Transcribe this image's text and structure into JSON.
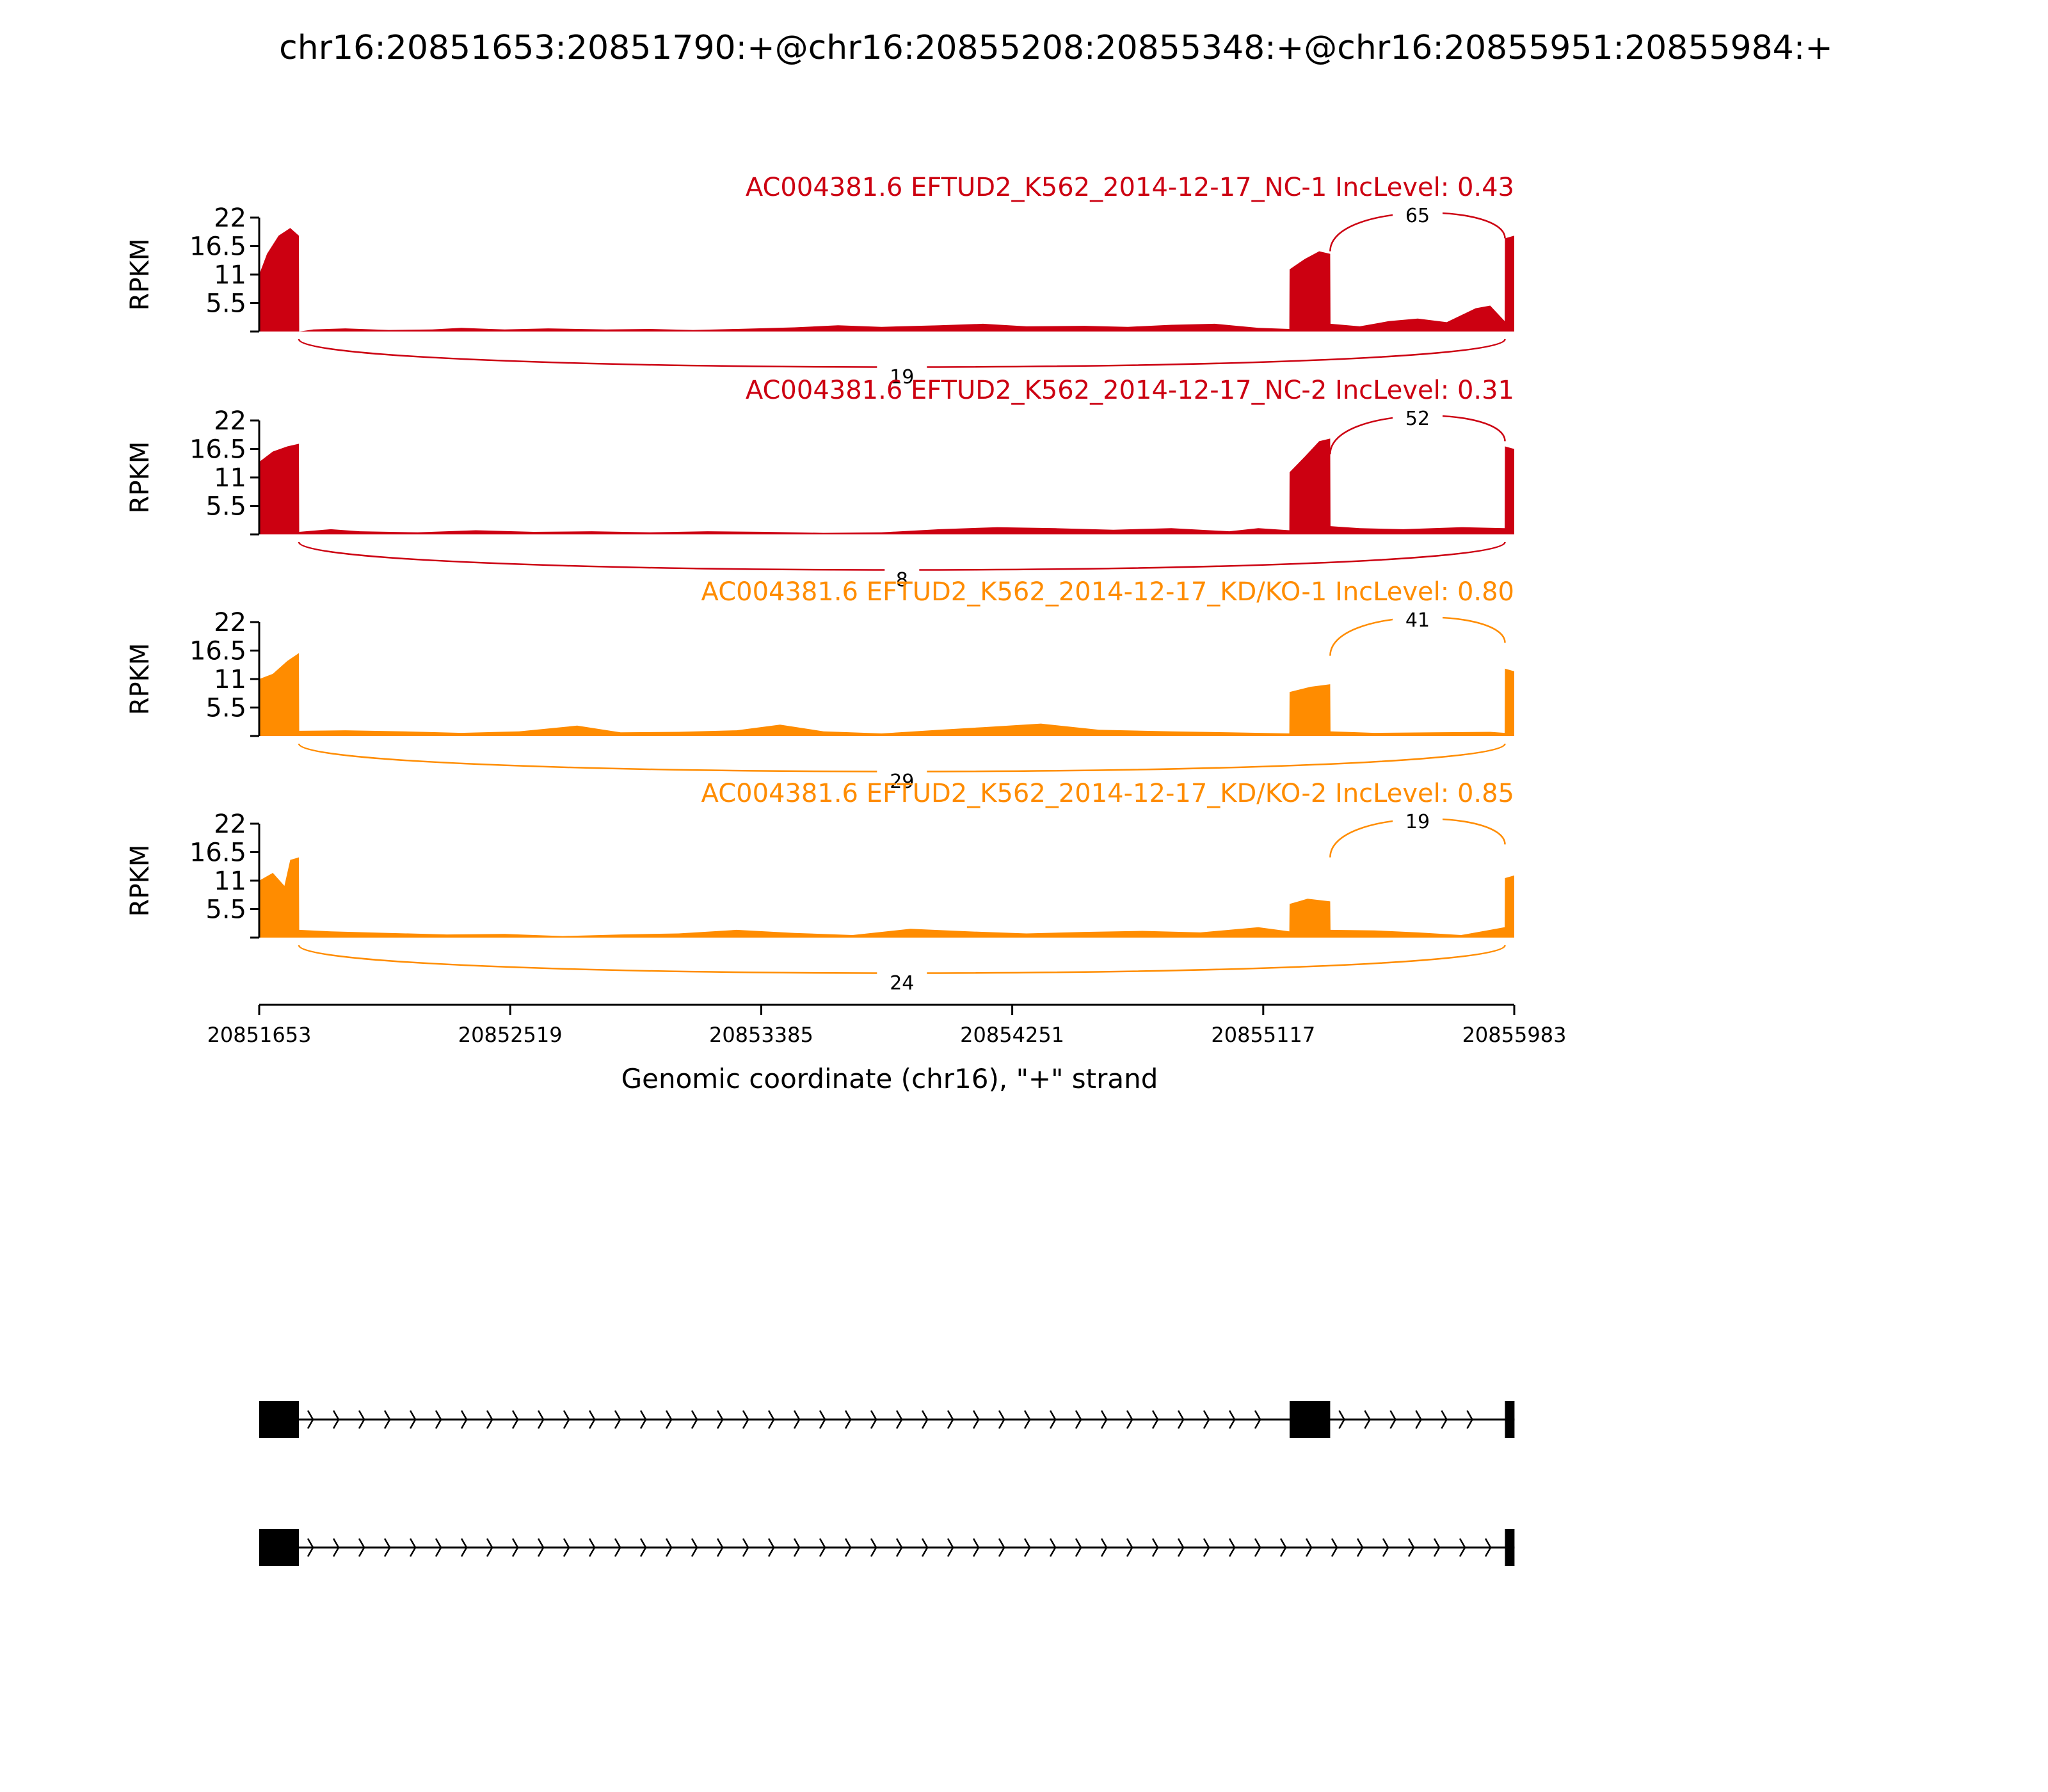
{
  "chart_data": {
    "type": "area",
    "title": "chr16:20851653:20851790:+@chr16:20855208:20855348:+@chr16:20855951:20855984:+",
    "xlabel": "Genomic coordinate (chr16), \"+\" strand",
    "ylabel": "RPKM",
    "xlim": [
      20851653,
      20855983
    ],
    "x_ticks": [
      20851653,
      20852519,
      20853385,
      20854251,
      20855117,
      20855983
    ],
    "x_tick_labels": [
      "20851653",
      "20852519",
      "20853385",
      "20854251",
      "20855117",
      "20855983"
    ],
    "ylim": [
      0,
      22
    ],
    "y_ticks": [
      5.5,
      11,
      16.5,
      22
    ],
    "y_tick_labels": [
      "5.5",
      "11",
      "16.5",
      "22"
    ],
    "exons": [
      [
        20851653,
        20851790
      ],
      [
        20855208,
        20855348
      ],
      [
        20855951,
        20855984
      ]
    ],
    "tracks": [
      {
        "label": "AC004381.6 EFTUD2_K562_2014-12-17_NC-1 IncLevel: 0.43",
        "color": "#cc0011",
        "junctions": [
          {
            "from": 20855348,
            "to": 20855951,
            "count": "65",
            "side": "above"
          },
          {
            "from": 20851790,
            "to": 20855951,
            "count": "19",
            "side": "below"
          }
        ],
        "coverage": [
          [
            20851653,
            11
          ],
          [
            20851680,
            15
          ],
          [
            20851720,
            18.5
          ],
          [
            20851760,
            20
          ],
          [
            20851790,
            18.5
          ],
          [
            20851791,
            0
          ],
          [
            20851840,
            0.4
          ],
          [
            20851950,
            0.6
          ],
          [
            20852100,
            0.3
          ],
          [
            20852250,
            0.4
          ],
          [
            20852350,
            0.7
          ],
          [
            20852500,
            0.4
          ],
          [
            20852650,
            0.6
          ],
          [
            20852850,
            0.4
          ],
          [
            20853000,
            0.5
          ],
          [
            20853150,
            0.3
          ],
          [
            20853300,
            0.5
          ],
          [
            20853500,
            0.8
          ],
          [
            20853650,
            1.2
          ],
          [
            20853800,
            0.9
          ],
          [
            20854000,
            1.2
          ],
          [
            20854150,
            1.5
          ],
          [
            20854300,
            1.0
          ],
          [
            20854500,
            1.1
          ],
          [
            20854650,
            0.9
          ],
          [
            20854800,
            1.3
          ],
          [
            20854950,
            1.5
          ],
          [
            20855100,
            0.7
          ],
          [
            20855207,
            0.5
          ],
          [
            20855208,
            12
          ],
          [
            20855260,
            14
          ],
          [
            20855310,
            15.5
          ],
          [
            20855348,
            15
          ],
          [
            20855349,
            1.5
          ],
          [
            20855450,
            1.0
          ],
          [
            20855550,
            2.0
          ],
          [
            20855650,
            2.5
          ],
          [
            20855750,
            1.8
          ],
          [
            20855850,
            4.5
          ],
          [
            20855900,
            5.0
          ],
          [
            20855950,
            2.0
          ],
          [
            20855951,
            18
          ],
          [
            20855983,
            18.5
          ]
        ]
      },
      {
        "label": "AC004381.6 EFTUD2_K562_2014-12-17_NC-2 IncLevel: 0.31",
        "color": "#cc0011",
        "junctions": [
          {
            "from": 20855348,
            "to": 20855951,
            "count": "52",
            "side": "above"
          },
          {
            "from": 20851790,
            "to": 20855951,
            "count": "8",
            "side": "below"
          }
        ],
        "coverage": [
          [
            20851653,
            14
          ],
          [
            20851700,
            16
          ],
          [
            20851750,
            17
          ],
          [
            20851790,
            17.5
          ],
          [
            20851791,
            0.5
          ],
          [
            20851900,
            1.0
          ],
          [
            20852000,
            0.6
          ],
          [
            20852200,
            0.4
          ],
          [
            20852400,
            0.8
          ],
          [
            20852600,
            0.5
          ],
          [
            20852800,
            0.6
          ],
          [
            20853000,
            0.4
          ],
          [
            20853200,
            0.6
          ],
          [
            20853400,
            0.5
          ],
          [
            20853600,
            0.3
          ],
          [
            20853800,
            0.4
          ],
          [
            20854000,
            1.0
          ],
          [
            20854200,
            1.4
          ],
          [
            20854400,
            1.2
          ],
          [
            20854600,
            0.9
          ],
          [
            20854800,
            1.2
          ],
          [
            20855000,
            0.6
          ],
          [
            20855100,
            1.2
          ],
          [
            20855207,
            0.8
          ],
          [
            20855208,
            12
          ],
          [
            20855260,
            15
          ],
          [
            20855310,
            18
          ],
          [
            20855348,
            18.5
          ],
          [
            20855349,
            1.6
          ],
          [
            20855450,
            1.2
          ],
          [
            20855600,
            1.0
          ],
          [
            20855800,
            1.4
          ],
          [
            20855950,
            1.2
          ],
          [
            20855951,
            17
          ],
          [
            20855983,
            16.5
          ]
        ]
      },
      {
        "label": "AC004381.6 EFTUD2_K562_2014-12-17_KD/KO-1 IncLevel: 0.80",
        "color": "#ff8c00",
        "junctions": [
          {
            "from": 20855348,
            "to": 20855951,
            "count": "41",
            "side": "above"
          },
          {
            "from": 20851790,
            "to": 20855951,
            "count": "29",
            "side": "below"
          }
        ],
        "coverage": [
          [
            20851653,
            11
          ],
          [
            20851700,
            12
          ],
          [
            20851750,
            14.5
          ],
          [
            20851790,
            16
          ],
          [
            20851791,
            1.0
          ],
          [
            20851950,
            1.1
          ],
          [
            20852150,
            0.9
          ],
          [
            20852350,
            0.6
          ],
          [
            20852550,
            0.9
          ],
          [
            20852750,
            2.0
          ],
          [
            20852900,
            0.7
          ],
          [
            20853100,
            0.8
          ],
          [
            20853300,
            1.1
          ],
          [
            20853450,
            2.2
          ],
          [
            20853600,
            0.9
          ],
          [
            20853800,
            0.5
          ],
          [
            20854000,
            1.2
          ],
          [
            20854150,
            1.7
          ],
          [
            20854350,
            2.4
          ],
          [
            20854550,
            1.2
          ],
          [
            20854800,
            0.9
          ],
          [
            20855000,
            0.7
          ],
          [
            20855207,
            0.5
          ],
          [
            20855208,
            8.5
          ],
          [
            20855280,
            9.5
          ],
          [
            20855348,
            10
          ],
          [
            20855349,
            0.9
          ],
          [
            20855500,
            0.6
          ],
          [
            20855700,
            0.7
          ],
          [
            20855900,
            0.8
          ],
          [
            20855950,
            0.6
          ],
          [
            20855951,
            13
          ],
          [
            20855983,
            12.5
          ]
        ]
      },
      {
        "label": "AC004381.6 EFTUD2_K562_2014-12-17_KD/KO-2 IncLevel: 0.85",
        "color": "#ff8c00",
        "junctions": [
          {
            "from": 20855348,
            "to": 20855951,
            "count": "19",
            "side": "above"
          },
          {
            "from": 20851790,
            "to": 20855951,
            "count": "24",
            "side": "below"
          }
        ],
        "coverage": [
          [
            20851653,
            11
          ],
          [
            20851700,
            12.5
          ],
          [
            20851740,
            10
          ],
          [
            20851760,
            15
          ],
          [
            20851790,
            15.5
          ],
          [
            20851791,
            1.5
          ],
          [
            20851900,
            1.2
          ],
          [
            20852100,
            0.9
          ],
          [
            20852300,
            0.6
          ],
          [
            20852500,
            0.7
          ],
          [
            20852700,
            0.3
          ],
          [
            20852900,
            0.6
          ],
          [
            20853100,
            0.8
          ],
          [
            20853300,
            1.5
          ],
          [
            20853500,
            0.9
          ],
          [
            20853700,
            0.5
          ],
          [
            20853900,
            1.7
          ],
          [
            20854100,
            1.2
          ],
          [
            20854300,
            0.8
          ],
          [
            20854500,
            1.1
          ],
          [
            20854700,
            1.3
          ],
          [
            20854900,
            1.0
          ],
          [
            20855100,
            2.0
          ],
          [
            20855207,
            1.2
          ],
          [
            20855208,
            6.5
          ],
          [
            20855270,
            7.5
          ],
          [
            20855348,
            7.0
          ],
          [
            20855349,
            1.5
          ],
          [
            20855500,
            1.4
          ],
          [
            20855650,
            1.0
          ],
          [
            20855800,
            0.5
          ],
          [
            20855900,
            1.5
          ],
          [
            20855950,
            2.0
          ],
          [
            20855951,
            11.5
          ],
          [
            20855983,
            12
          ]
        ]
      }
    ],
    "isoforms": [
      {
        "exons": [
          [
            20851653,
            20851790
          ],
          [
            20855208,
            20855348
          ],
          [
            20855951,
            20855984
          ]
        ]
      },
      {
        "exons": [
          [
            20851653,
            20851790
          ],
          [
            20855951,
            20855984
          ]
        ]
      }
    ]
  }
}
